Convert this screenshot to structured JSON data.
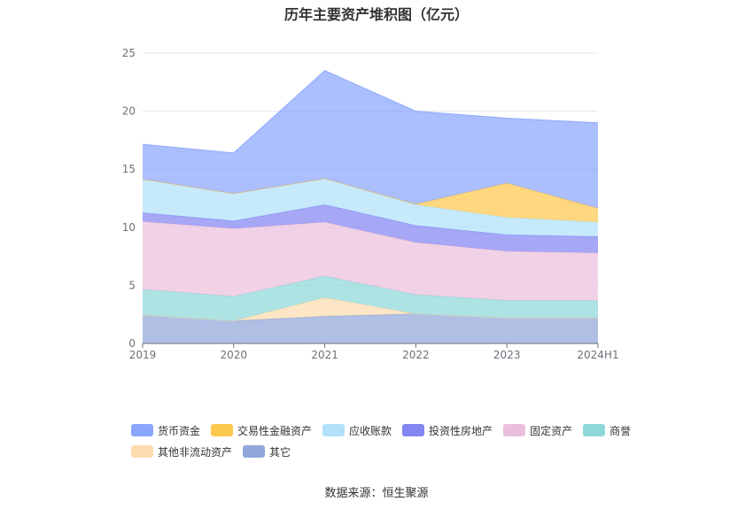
{
  "chart_data": {
    "type": "area",
    "title": "历年主要资产堆积图（亿元）",
    "stacked": true,
    "x": [
      "2019",
      "2020",
      "2021",
      "2022",
      "2023",
      "2024H1"
    ],
    "ylim": [
      0,
      25
    ],
    "yticks": [
      0,
      5,
      10,
      15,
      20,
      25
    ],
    "grid": true,
    "legend_position": "bottom",
    "series": [
      {
        "name": "其它",
        "color": "#91a6d9",
        "values": [
          2.45,
          1.95,
          2.35,
          2.55,
          2.2,
          2.2
        ]
      },
      {
        "name": "其他非流动资产",
        "color": "#fbdcae",
        "values": [
          0.0,
          0.0,
          1.6,
          0.0,
          0.0,
          0.0
        ]
      },
      {
        "name": "商誉",
        "color": "#8ed8d8",
        "values": [
          2.2,
          2.1,
          1.85,
          1.65,
          1.5,
          1.5
        ]
      },
      {
        "name": "固定资产",
        "color": "#ebbfdc",
        "values": [
          5.85,
          5.85,
          4.65,
          4.5,
          4.25,
          4.1
        ]
      },
      {
        "name": "投资性房地产",
        "color": "#8486f2",
        "values": [
          0.75,
          0.65,
          1.5,
          1.45,
          1.4,
          1.4
        ]
      },
      {
        "name": "应收账款",
        "color": "#b2e1fb",
        "values": [
          2.9,
          2.35,
          2.25,
          1.8,
          1.5,
          1.25
        ]
      },
      {
        "name": "交易性金融资产",
        "color": "#fdc84e",
        "values": [
          0.0,
          0.0,
          0.0,
          0.05,
          2.95,
          1.2
        ]
      },
      {
        "name": "货币资金",
        "color": "#8aa5fc",
        "values": [
          3.0,
          3.5,
          9.3,
          8.0,
          5.6,
          7.35
        ]
      }
    ]
  },
  "legend": {
    "row1": [
      "货币资金",
      "交易性金融资产",
      "应收账款",
      "投资性房地产",
      "固定资产",
      "商誉"
    ],
    "row2": [
      "其他非流动资产",
      "其它"
    ]
  },
  "colors": {
    "货币资金": "#8aa5fc",
    "交易性金融资产": "#fdc84e",
    "应收账款": "#b2e1fb",
    "投资性房地产": "#8486f2",
    "固定资产": "#ebbfdc",
    "商誉": "#8ed8d8",
    "其他非流动资产": "#fbdcae",
    "其它": "#91a6d9"
  },
  "source": "数据来源：恒生聚源"
}
